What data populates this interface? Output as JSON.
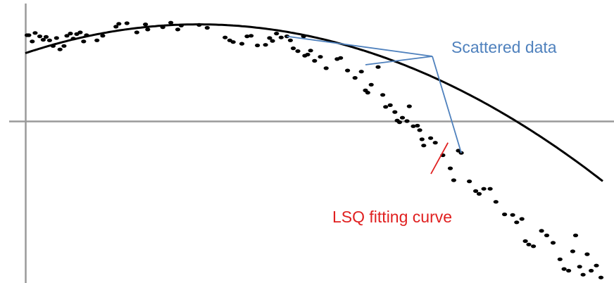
{
  "chart_data": {
    "type": "scatter",
    "title": "",
    "xlabel": "",
    "ylabel": "",
    "xlim": [
      0,
      100
    ],
    "ylim": [
      -30,
      18
    ],
    "grid": false,
    "axes": {
      "x_axis_at_y": 0,
      "y_axis_at_x": 0
    },
    "series": [
      {
        "kind": "points",
        "color": "#000000",
        "points": [
          [
            0.3,
            15.1
          ],
          [
            0.6,
            15.1
          ],
          [
            1.2,
            14.0
          ],
          [
            1.7,
            15.5
          ],
          [
            2.5,
            14.9
          ],
          [
            3.1,
            14.3
          ],
          [
            3.6,
            14.8
          ],
          [
            4.2,
            14.2
          ],
          [
            4.8,
            13.2
          ],
          [
            5.4,
            14.6
          ],
          [
            6.0,
            12.6
          ],
          [
            6.7,
            13.2
          ],
          [
            7.2,
            15.0
          ],
          [
            7.8,
            15.4
          ],
          [
            8.3,
            14.5
          ],
          [
            8.9,
            15.3
          ],
          [
            9.5,
            15.6
          ],
          [
            10.1,
            14.0
          ],
          [
            10.6,
            15.1
          ],
          [
            12.4,
            14.2
          ],
          [
            13.4,
            15.0
          ],
          [
            15.7,
            16.6
          ],
          [
            16.2,
            17.1
          ],
          [
            17.6,
            17.2
          ],
          [
            19.3,
            15.6
          ],
          [
            20.8,
            17.0
          ],
          [
            21.2,
            16.1
          ],
          [
            23.8,
            16.5
          ],
          [
            25.2,
            17.3
          ],
          [
            26.4,
            16.1
          ],
          [
            27.0,
            16.8
          ],
          [
            30.1,
            16.9
          ],
          [
            31.5,
            16.4
          ],
          [
            34.6,
            14.7
          ],
          [
            35.4,
            14.2
          ],
          [
            36.0,
            13.9
          ],
          [
            37.5,
            13.6
          ],
          [
            38.4,
            14.9
          ],
          [
            39.1,
            15.0
          ],
          [
            40.2,
            13.3
          ],
          [
            41.6,
            13.4
          ],
          [
            42.3,
            14.6
          ],
          [
            42.8,
            14.1
          ],
          [
            43.5,
            15.4
          ],
          [
            44.3,
            14.7
          ],
          [
            45.3,
            14.9
          ],
          [
            45.9,
            14.2
          ],
          [
            46.4,
            12.8
          ],
          [
            47.2,
            12.3
          ],
          [
            48.2,
            14.9
          ],
          [
            48.4,
            11.5
          ],
          [
            48.9,
            11.7
          ],
          [
            49.4,
            12.4
          ],
          [
            50.1,
            10.6
          ],
          [
            51.1,
            11.3
          ],
          [
            52.1,
            9.3
          ],
          [
            54.0,
            10.9
          ],
          [
            54.6,
            11.1
          ],
          [
            55.8,
            8.9
          ],
          [
            57.1,
            7.6
          ],
          [
            58.2,
            8.7
          ],
          [
            58.9,
            5.4
          ],
          [
            59.3,
            5.0
          ],
          [
            59.9,
            6.4
          ],
          [
            61.1,
            9.5
          ],
          [
            61.9,
            4.6
          ],
          [
            62.4,
            2.5
          ],
          [
            63.2,
            2.8
          ],
          [
            64.0,
            1.6
          ],
          [
            64.4,
            0.1
          ],
          [
            64.8,
            -0.2
          ],
          [
            65.3,
            0.6
          ],
          [
            66.1,
            0.0
          ],
          [
            66.5,
            2.6
          ],
          [
            67.2,
            -0.9
          ],
          [
            67.9,
            -0.8
          ],
          [
            68.3,
            -1.6
          ],
          [
            68.7,
            -3.2
          ],
          [
            69.0,
            -4.3
          ],
          [
            70.2,
            -3.0
          ],
          [
            71.0,
            -3.8
          ],
          [
            72.3,
            -6.0
          ],
          [
            73.6,
            -8.3
          ],
          [
            74.2,
            -10.4
          ],
          [
            75.0,
            -5.2
          ],
          [
            75.5,
            -5.6
          ],
          [
            76.9,
            -10.6
          ],
          [
            78.0,
            -12.3
          ],
          [
            78.6,
            -12.8
          ],
          [
            79.4,
            -11.9
          ],
          [
            80.5,
            -11.9
          ],
          [
            81.5,
            -14.2
          ],
          [
            83.0,
            -16.4
          ],
          [
            84.4,
            -16.5
          ],
          [
            85.1,
            -17.8
          ],
          [
            86.0,
            -17.2
          ],
          [
            86.6,
            -21.1
          ],
          [
            87.2,
            -21.7
          ],
          [
            88.0,
            -22.0
          ],
          [
            89.4,
            -19.3
          ],
          [
            90.3,
            -20.1
          ],
          [
            91.4,
            -21.4
          ],
          [
            92.6,
            -24.3
          ],
          [
            93.3,
            -26.0
          ],
          [
            94.1,
            -26.3
          ],
          [
            94.8,
            -22.9
          ],
          [
            95.3,
            -20.1
          ],
          [
            96.0,
            -25.6
          ],
          [
            96.6,
            -27.0
          ],
          [
            97.3,
            -23.4
          ],
          [
            98.0,
            -26.3
          ],
          [
            98.9,
            -25.4
          ],
          [
            99.7,
            -27.5
          ]
        ]
      },
      {
        "kind": "fit",
        "color": "#000000",
        "equation": {
          "form": "quadratic",
          "a": -0.005625,
          "b": 0.3375,
          "c": 11.94
        }
      }
    ],
    "annotations": [
      {
        "text": "Scattered data",
        "color": "#4f81bd",
        "pointer_color": "#4f81bd",
        "targets": [
          [
            45.3,
            14.9
          ],
          [
            58.9,
            9.9
          ],
          [
            75.5,
            -5.6
          ]
        ]
      },
      {
        "text": "LSQ fitting curve",
        "color": "#e02020",
        "pointer_color": "#e02020",
        "targets": [
          [
            73.2,
            -3.8
          ]
        ]
      }
    ]
  }
}
